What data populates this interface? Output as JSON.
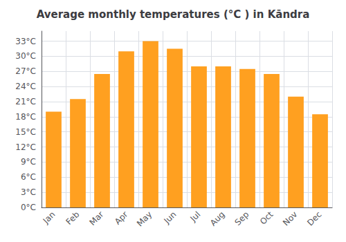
{
  "chart_data": {
    "type": "bar",
    "title": "Average monthly temperatures (°C ) in Kāndra",
    "categories": [
      "Jan",
      "Feb",
      "Mar",
      "Apr",
      "May",
      "Jun",
      "Jul",
      "Aug",
      "Sep",
      "Oct",
      "Nov",
      "Dec"
    ],
    "values": [
      19.0,
      21.5,
      26.5,
      31.0,
      33.0,
      31.5,
      28.0,
      28.0,
      27.5,
      26.5,
      22.0,
      18.5
    ],
    "color": "#FFA020",
    "ylim": [
      0,
      35
    ],
    "yticks": [
      {
        "value": 0,
        "label": "0°C"
      },
      {
        "value": 3,
        "label": "3°C"
      },
      {
        "value": 6,
        "label": "6°C"
      },
      {
        "value": 9,
        "label": "9°C"
      },
      {
        "value": 12,
        "label": "12°C"
      },
      {
        "value": 15,
        "label": "15°C"
      },
      {
        "value": 18,
        "label": "18°C"
      },
      {
        "value": 21,
        "label": "21°C"
      },
      {
        "value": 24,
        "label": "24°C"
      },
      {
        "value": 27,
        "label": "27°C"
      },
      {
        "value": 30,
        "label": "30°C"
      },
      {
        "value": 33,
        "label": "33°C"
      }
    ],
    "grid": true
  }
}
